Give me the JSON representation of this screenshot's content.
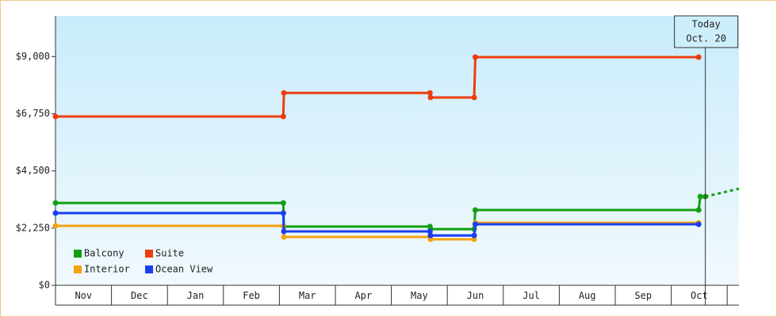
{
  "chart_data": {
    "type": "step-line",
    "categories": [
      "Nov",
      "Dec",
      "Jan",
      "Feb",
      "Mar",
      "Apr",
      "May",
      "Jun",
      "Jul",
      "Aug",
      "Sep",
      "Oct"
    ],
    "xlim": [
      0,
      12.21
    ],
    "ylim": [
      0,
      10600
    ],
    "yticks": [
      {
        "value": 0,
        "label": "$0"
      },
      {
        "value": 2250,
        "label": "$2,250"
      },
      {
        "value": 4500,
        "label": "$4,500"
      },
      {
        "value": 6750,
        "label": "$6,750"
      },
      {
        "value": 9000,
        "label": "$9,000"
      }
    ],
    "legend": "bottom-left",
    "series": [
      {
        "name": "Balcony",
        "color": "#11a011",
        "x": [
          0,
          4.07,
          4.08,
          6.69,
          6.7,
          7.48,
          7.5,
          11.49,
          11.52,
          11.61
        ],
        "values": [
          3240,
          3240,
          2310,
          2310,
          2210,
          2210,
          2960,
          2960,
          3490,
          3490
        ],
        "forecast": {
          "x": [
            11.61,
            12.21
          ],
          "values": [
            3490,
            3800
          ]
        }
      },
      {
        "name": "Suite",
        "color": "#ee3d0f",
        "x": [
          0,
          4.07,
          4.08,
          6.69,
          6.7,
          7.48,
          7.5,
          11.49
        ],
        "values": [
          6640,
          6640,
          7570,
          7570,
          7390,
          7390,
          8975,
          8975
        ]
      },
      {
        "name": "Interior",
        "color": "#f5a30f",
        "x": [
          0,
          4.07,
          4.08,
          6.69,
          6.7,
          7.48,
          7.5,
          11.49
        ],
        "values": [
          2340,
          2340,
          1900,
          1900,
          1810,
          1810,
          2460,
          2460
        ]
      },
      {
        "name": "Ocean View",
        "color": "#1a3ef0",
        "x": [
          0,
          4.07,
          4.08,
          6.69,
          6.7,
          7.48,
          7.5,
          11.49
        ],
        "values": [
          2840,
          2840,
          2120,
          2120,
          1960,
          1960,
          2400,
          2400
        ]
      }
    ],
    "annotation": {
      "x": 11.61,
      "lines": [
        "Today",
        "Oct. 20"
      ]
    }
  }
}
